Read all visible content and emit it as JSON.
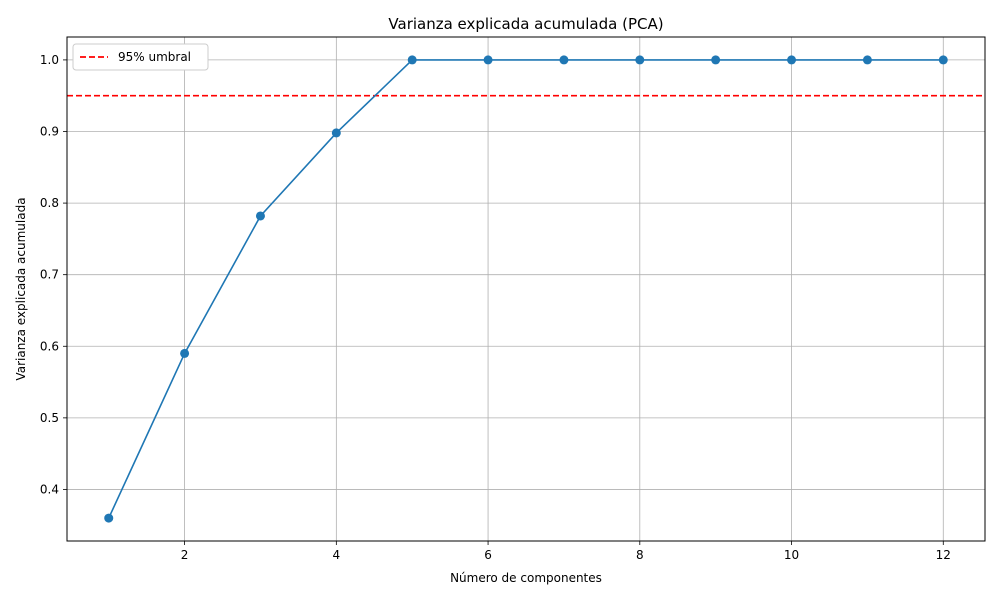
{
  "chart_data": {
    "type": "line",
    "title": "Varianza explicada acumulada (PCA)",
    "xlabel": "Número de componentes",
    "ylabel": "Varianza explicada acumulada",
    "x": [
      1,
      2,
      3,
      4,
      5,
      6,
      7,
      8,
      9,
      10,
      11,
      12
    ],
    "series": [
      {
        "values": [
          0.36,
          0.59,
          0.782,
          0.898,
          1.0,
          1.0,
          1.0,
          1.0,
          1.0,
          1.0,
          1.0,
          1.0
        ],
        "color": "#1f77b4",
        "marker": "circle"
      }
    ],
    "threshold": {
      "name": "95% umbral",
      "value": 0.95,
      "color": "#ff0000",
      "style": "dashed"
    },
    "xlim": [
      0.45,
      12.55
    ],
    "ylim": [
      0.328,
      1.032
    ],
    "xticks": [
      2,
      4,
      6,
      8,
      10,
      12
    ],
    "yticks": [
      0.4,
      0.5,
      0.6,
      0.7,
      0.8,
      0.9,
      1.0
    ],
    "ytick_labels": [
      "0.4",
      "0.5",
      "0.6",
      "0.7",
      "0.8",
      "0.9",
      "1.0"
    ],
    "grid": true,
    "legend": "top-left"
  }
}
